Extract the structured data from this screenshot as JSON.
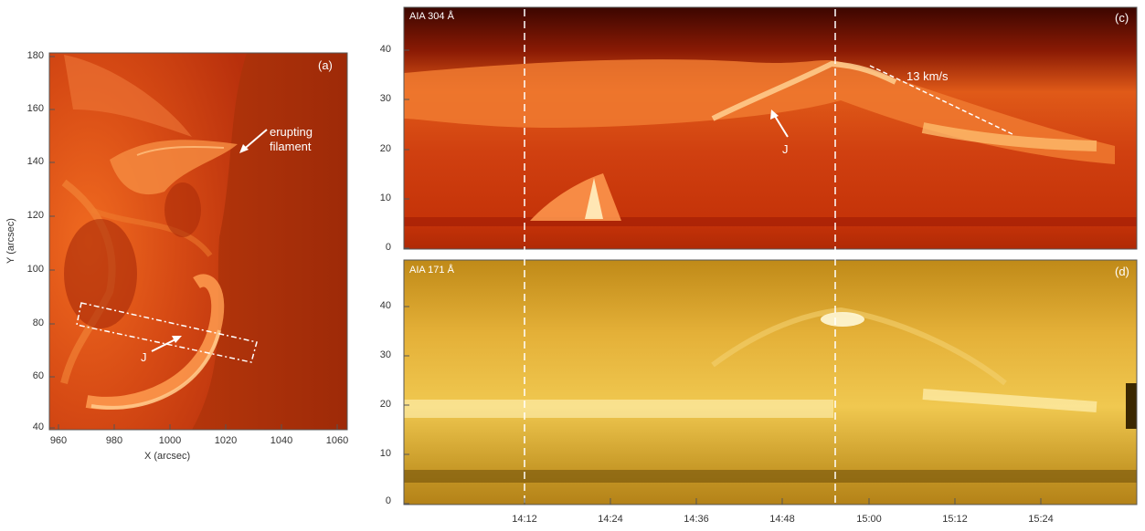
{
  "panel_a": {
    "label": "(a)",
    "xlabel": "X (arcsec)",
    "ylabel": "Y (arcsec)",
    "x_ticks": [
      "960",
      "980",
      "1000",
      "1020",
      "1040",
      "1060"
    ],
    "y_ticks": [
      "180",
      "160",
      "140",
      "120",
      "100",
      "80",
      "60",
      "40"
    ],
    "annotation_filament": "erupting filament",
    "annotation_j": "J"
  },
  "panel_c": {
    "label": "(c)",
    "channel": "AIA 304 Å",
    "y_ticks": [
      "40",
      "30",
      "20",
      "10",
      "0"
    ],
    "annotation_speed": "13 km/s",
    "annotation_j": "J"
  },
  "panel_d": {
    "label": "(d)",
    "channel": "AIA 171 Å",
    "y_ticks": [
      "40",
      "30",
      "20",
      "10",
      "0"
    ]
  },
  "time_axis": {
    "ticks": [
      "14:12",
      "14:24",
      "14:36",
      "14:48",
      "15:00",
      "15:12",
      "15:24"
    ]
  },
  "colors": {
    "aia304_dark": "#5a0a00",
    "aia304_mid": "#c83a10",
    "aia304_bright": "#ffd9a0",
    "aia171_dark": "#4a3300",
    "aia171_mid": "#d8a020",
    "aia171_bright": "#fff0b0"
  }
}
